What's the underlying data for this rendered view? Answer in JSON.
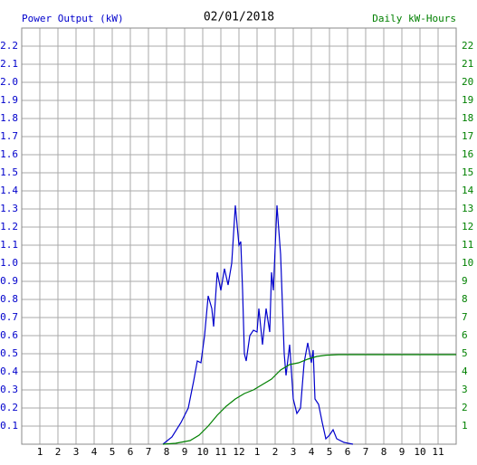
{
  "chart_data": {
    "type": "line",
    "title": "02/01/2018",
    "ylabel": "Power Output (kW)",
    "y2label": "Daily kW-Hours",
    "xlim": [
      0,
      24
    ],
    "xticks": [
      {
        "value": 1,
        "label": "1"
      },
      {
        "value": 2,
        "label": "2"
      },
      {
        "value": 3,
        "label": "3"
      },
      {
        "value": 4,
        "label": "4"
      },
      {
        "value": 5,
        "label": "5"
      },
      {
        "value": 6,
        "label": "6"
      },
      {
        "value": 7,
        "label": "7"
      },
      {
        "value": 8,
        "label": "8"
      },
      {
        "value": 9,
        "label": "9"
      },
      {
        "value": 10,
        "label": "10"
      },
      {
        "value": 11,
        "label": "11"
      },
      {
        "value": 12,
        "label": "12"
      },
      {
        "value": 13,
        "label": "1"
      },
      {
        "value": 14,
        "label": "2"
      },
      {
        "value": 15,
        "label": "3"
      },
      {
        "value": 16,
        "label": "4"
      },
      {
        "value": 17,
        "label": "5"
      },
      {
        "value": 18,
        "label": "6"
      },
      {
        "value": 19,
        "label": "7"
      },
      {
        "value": 20,
        "label": "8"
      },
      {
        "value": 21,
        "label": "9"
      },
      {
        "value": 22,
        "label": "10"
      },
      {
        "value": 23,
        "label": "11"
      }
    ],
    "ylim": [
      0,
      2.3
    ],
    "yticks": [
      0.1,
      0.2,
      0.3,
      0.4,
      0.5,
      0.6,
      0.7,
      0.8,
      0.9,
      {
        "value": 1,
        "label": "1.0"
      },
      1.1,
      1.2,
      1.3,
      1.4,
      1.5,
      1.6,
      1.7,
      1.8,
      1.9,
      {
        "value": 2,
        "label": "2.0"
      },
      2.1,
      2.2
    ],
    "y2lim": [
      0,
      23
    ],
    "y2ticks": [
      1,
      2,
      3,
      4,
      5,
      6,
      7,
      8,
      9,
      10,
      11,
      12,
      13,
      14,
      15,
      16,
      17,
      18,
      19,
      20,
      21,
      22
    ],
    "grid": true,
    "series": [
      {
        "color": "#0000cc",
        "x": [
          7.8,
          8.3,
          8.8,
          9.2,
          9.5,
          9.7,
          9.9,
          10.1,
          10.3,
          10.5,
          10.6,
          10.8,
          11.0,
          11.2,
          11.4,
          11.6,
          11.8,
          12.0,
          12.1,
          12.2,
          12.3,
          12.4,
          12.6,
          12.8,
          13.0,
          13.1,
          13.3,
          13.5,
          13.7,
          13.8,
          13.9,
          14.1,
          14.3,
          14.5,
          14.6,
          14.8,
          15.0,
          15.2,
          15.4,
          15.6,
          15.8,
          16.0,
          16.1,
          16.2,
          16.4,
          16.6,
          16.8,
          17.0,
          17.2,
          17.4,
          17.8,
          18.3
        ],
        "values": [
          0,
          0.04,
          0.12,
          0.2,
          0.35,
          0.46,
          0.45,
          0.6,
          0.82,
          0.75,
          0.65,
          0.95,
          0.85,
          0.97,
          0.88,
          1.0,
          1.32,
          1.1,
          1.12,
          0.85,
          0.5,
          0.46,
          0.6,
          0.63,
          0.62,
          0.75,
          0.55,
          0.75,
          0.62,
          0.95,
          0.85,
          1.32,
          1.05,
          0.5,
          0.38,
          0.55,
          0.25,
          0.17,
          0.2,
          0.45,
          0.56,
          0.45,
          0.52,
          0.25,
          0.22,
          0.12,
          0.03,
          0.05,
          0.08,
          0.03,
          0.01,
          0
        ]
      },
      {
        "color": "#008000",
        "axis": "y2",
        "x": [
          7.8,
          8.5,
          9.3,
          9.8,
          10.3,
          10.8,
          11.3,
          11.8,
          12.3,
          12.8,
          13.3,
          13.8,
          14.3,
          14.8,
          15.3,
          15.8,
          16.3,
          16.8,
          17.5,
          24
        ],
        "values": [
          0,
          0.05,
          0.2,
          0.5,
          1.0,
          1.6,
          2.1,
          2.5,
          2.8,
          3.0,
          3.3,
          3.6,
          4.1,
          4.4,
          4.5,
          4.7,
          4.85,
          4.92,
          4.95,
          4.95
        ]
      }
    ]
  }
}
